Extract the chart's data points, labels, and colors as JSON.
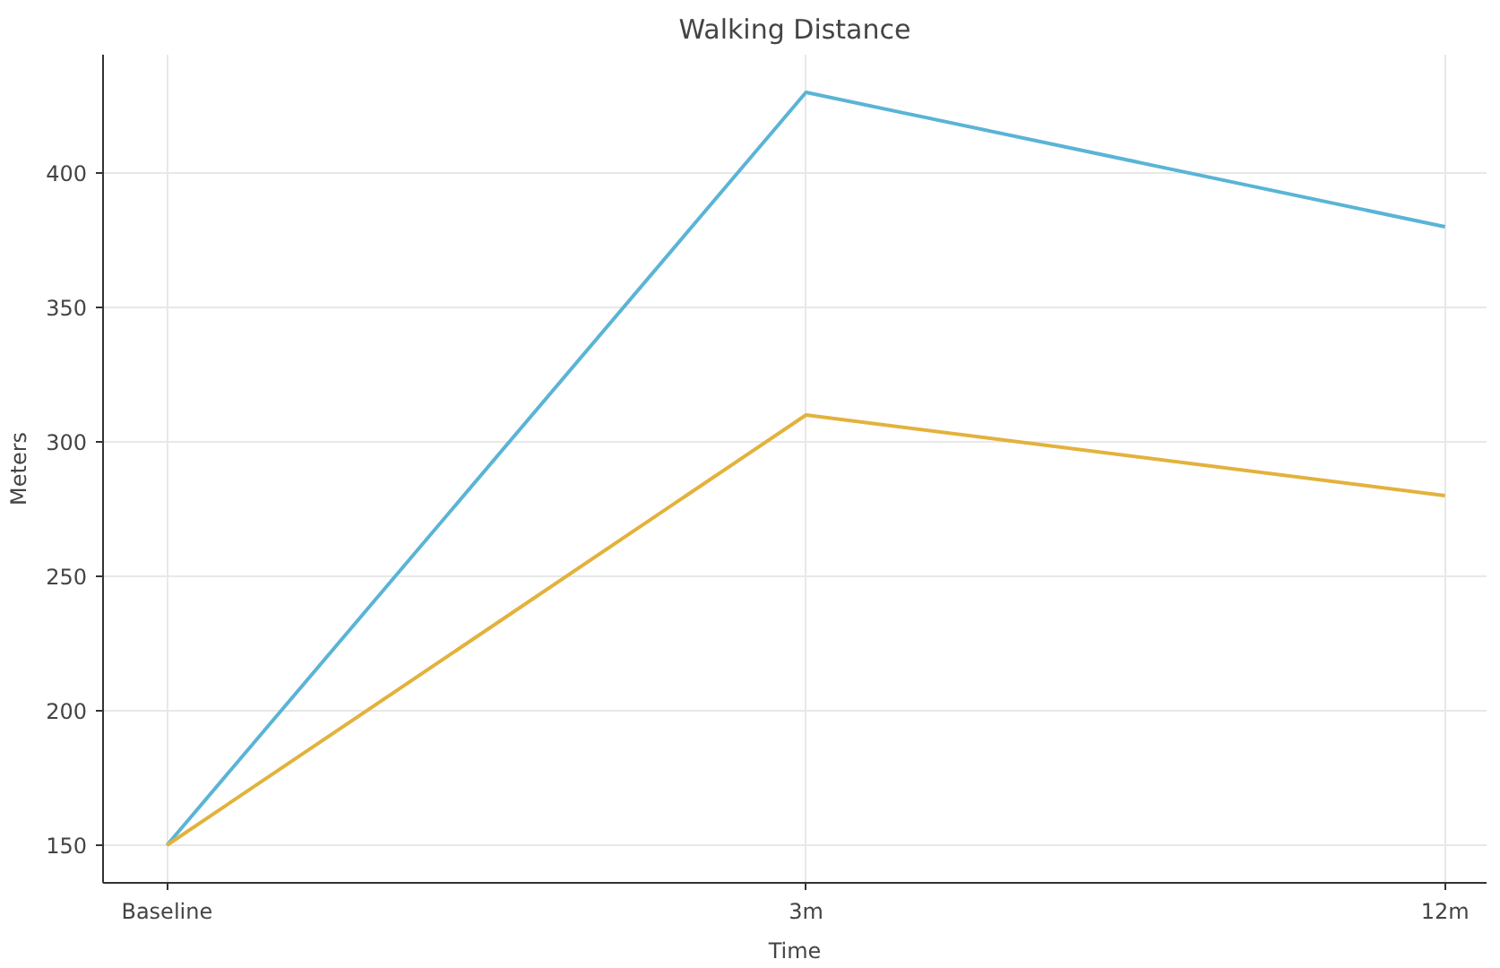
{
  "chart_data": {
    "type": "line",
    "title": "Walking Distance",
    "xlabel": "Time",
    "ylabel": "Meters",
    "categories": [
      "Baseline",
      "3m",
      "12m"
    ],
    "series": [
      {
        "color": "#5ab4d6",
        "values": [
          150,
          430,
          380
        ]
      },
      {
        "color": "#e3b23c",
        "values": [
          150,
          310,
          280
        ]
      }
    ],
    "ylim": [
      136,
      444
    ],
    "yticks": [
      150,
      200,
      250,
      300,
      350,
      400
    ],
    "grid": true
  }
}
